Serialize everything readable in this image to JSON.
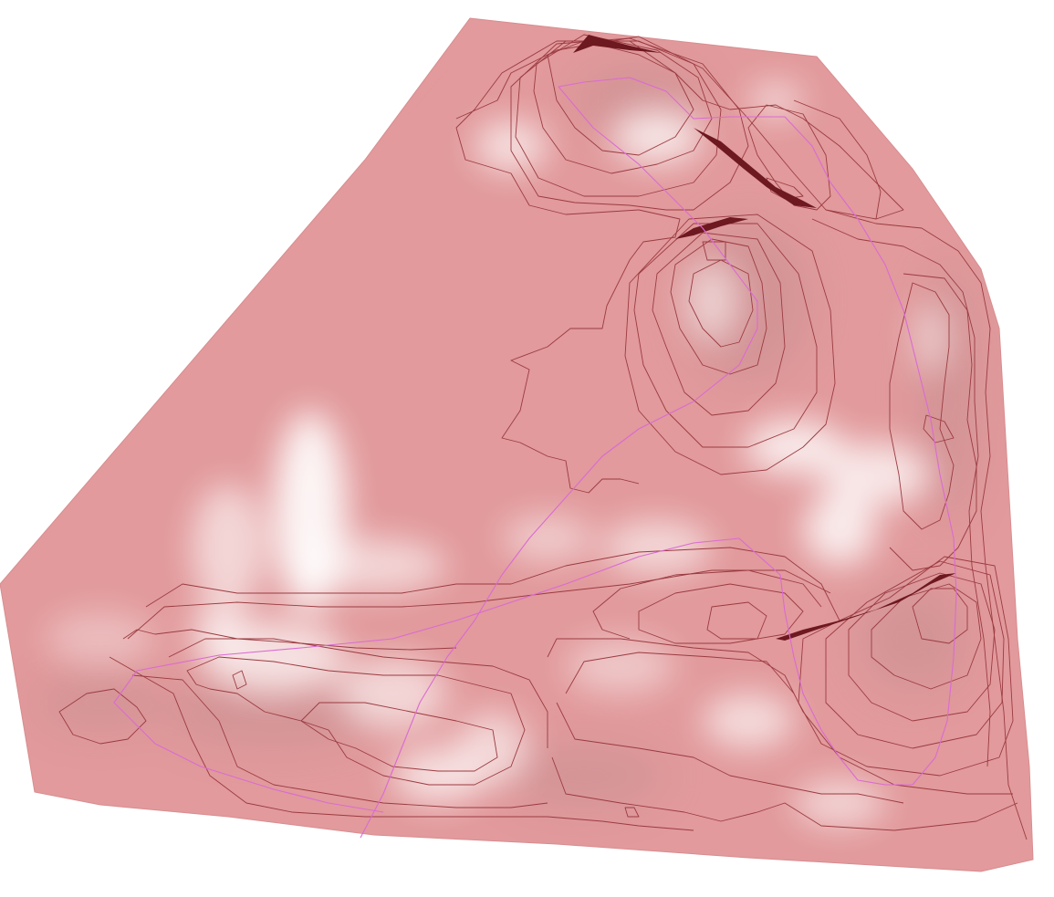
{
  "scene": {
    "colors": {
      "background": "#ffffff",
      "surface": "#e29a9c",
      "surface_edge": "#d88d90",
      "highlight": "#ffffff",
      "shadow": "#b98a8c",
      "contour": "#9b3b41",
      "contour_dark": "#6e1820",
      "path": "#d96bd3"
    }
  }
}
